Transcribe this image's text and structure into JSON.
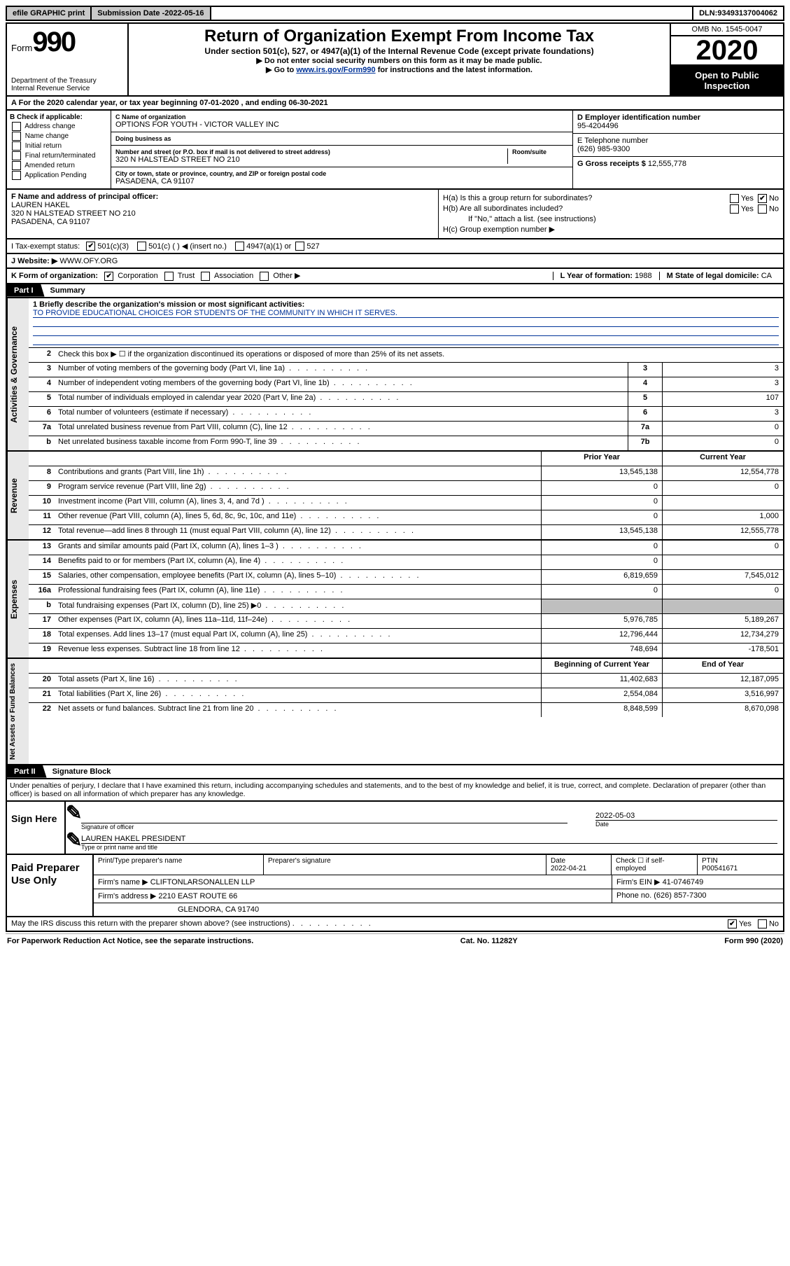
{
  "top": {
    "efile": "efile GRAPHIC print",
    "subdate_label": "Submission Date - ",
    "subdate": "2022-05-16",
    "dln_label": "DLN: ",
    "dln": "93493137004062"
  },
  "header": {
    "form_word": "Form",
    "form_num": "990",
    "dept": "Department of the Treasury\nInternal Revenue Service",
    "title": "Return of Organization Exempt From Income Tax",
    "subtitle": "Under section 501(c), 527, or 4947(a)(1) of the Internal Revenue Code (except private foundations)",
    "instr1": "▶ Do not enter social security numbers on this form as it may be made public.",
    "instr2a": "▶ Go to ",
    "instr2link": "www.irs.gov/Form990",
    "instr2b": " for instructions and the latest information.",
    "omb": "OMB No. 1545-0047",
    "year": "2020",
    "open": "Open to Public Inspection"
  },
  "period": {
    "line": "For the 2020 calendar year, or tax year beginning 07-01-2020   , and ending 06-30-2021"
  },
  "B": {
    "label": "B Check if applicable:",
    "opts": [
      "Address change",
      "Name change",
      "Initial return",
      "Final return/terminated",
      "Amended return",
      "Application Pending"
    ]
  },
  "C": {
    "name_label": "C Name of organization",
    "name": "OPTIONS FOR YOUTH - VICTOR VALLEY INC",
    "dba_label": "Doing business as",
    "dba": "",
    "street_label": "Number and street (or P.O. box if mail is not delivered to street address)",
    "room_label": "Room/suite",
    "street": "320 N HALSTEAD STREET NO 210",
    "city_label": "City or town, state or province, country, and ZIP or foreign postal code",
    "city": "PASADENA, CA  91107"
  },
  "D": {
    "label": "D Employer identification number",
    "val": "95-4204496"
  },
  "E": {
    "label": "E Telephone number",
    "val": "(626) 985-9300"
  },
  "G": {
    "label": "G Gross receipts $ ",
    "val": "12,555,778"
  },
  "F": {
    "label": "F  Name and address of principal officer:",
    "name": "LAUREN HAKEL",
    "addr1": "320 N HALSTEAD STREET NO 210",
    "addr2": "PASADENA, CA  91107"
  },
  "H": {
    "a": "H(a)  Is this a group return for subordinates?",
    "b": "H(b)  Are all subordinates included?",
    "b_note": "If \"No,\" attach a list. (see instructions)",
    "c": "H(c)  Group exemption number ▶"
  },
  "I": {
    "label": "I   Tax-exempt status:",
    "c1": "501(c)(3)",
    "c2": "501(c) (  ) ◀ (insert no.)",
    "c3": "4947(a)(1) or",
    "c4": "527"
  },
  "J": {
    "label": "J   Website: ▶ ",
    "val": "WWW.OFY.ORG"
  },
  "K": {
    "label": "K Form of organization:",
    "o1": "Corporation",
    "o2": "Trust",
    "o3": "Association",
    "o4": "Other ▶"
  },
  "L": {
    "label": "L Year of formation: ",
    "val": "1988"
  },
  "M": {
    "label": "M State of legal domicile: ",
    "val": "CA"
  },
  "part1": {
    "tab": "Part I",
    "title": "Summary"
  },
  "sum": {
    "l1_label": "1   Briefly describe the organization's mission or most significant activities:",
    "l1_val": "TO PROVIDE EDUCATIONAL CHOICES FOR STUDENTS OF THE COMMUNITY IN WHICH IT SERVES.",
    "l2": "Check this box ▶ ☐  if the organization discontinued its operations or disposed of more than 25% of its net assets.",
    "rows_gov": [
      {
        "n": "3",
        "d": "Number of voting members of the governing body (Part VI, line 1a)",
        "bn": "3",
        "v": "3"
      },
      {
        "n": "4",
        "d": "Number of independent voting members of the governing body (Part VI, line 1b)",
        "bn": "4",
        "v": "3"
      },
      {
        "n": "5",
        "d": "Total number of individuals employed in calendar year 2020 (Part V, line 2a)",
        "bn": "5",
        "v": "107"
      },
      {
        "n": "6",
        "d": "Total number of volunteers (estimate if necessary)",
        "bn": "6",
        "v": "3"
      },
      {
        "n": "7a",
        "d": "Total unrelated business revenue from Part VIII, column (C), line 12",
        "bn": "7a",
        "v": "0"
      },
      {
        "n": "b",
        "d": "Net unrelated business taxable income from Form 990-T, line 39",
        "bn": "7b",
        "v": "0"
      }
    ],
    "hdr_prior": "Prior Year",
    "hdr_curr": "Current Year",
    "rows_rev": [
      {
        "n": "8",
        "d": "Contributions and grants (Part VIII, line 1h)",
        "p": "13,545,138",
        "c": "12,554,778"
      },
      {
        "n": "9",
        "d": "Program service revenue (Part VIII, line 2g)",
        "p": "0",
        "c": "0"
      },
      {
        "n": "10",
        "d": "Investment income (Part VIII, column (A), lines 3, 4, and 7d )",
        "p": "0",
        "c": ""
      },
      {
        "n": "11",
        "d": "Other revenue (Part VIII, column (A), lines 5, 6d, 8c, 9c, 10c, and 11e)",
        "p": "0",
        "c": "1,000"
      },
      {
        "n": "12",
        "d": "Total revenue—add lines 8 through 11 (must equal Part VIII, column (A), line 12)",
        "p": "13,545,138",
        "c": "12,555,778"
      }
    ],
    "rows_exp": [
      {
        "n": "13",
        "d": "Grants and similar amounts paid (Part IX, column (A), lines 1–3 )",
        "p": "0",
        "c": "0"
      },
      {
        "n": "14",
        "d": "Benefits paid to or for members (Part IX, column (A), line 4)",
        "p": "0",
        "c": ""
      },
      {
        "n": "15",
        "d": "Salaries, other compensation, employee benefits (Part IX, column (A), lines 5–10)",
        "p": "6,819,659",
        "c": "7,545,012"
      },
      {
        "n": "16a",
        "d": "Professional fundraising fees (Part IX, column (A), line 11e)",
        "p": "0",
        "c": "0"
      },
      {
        "n": "b",
        "d": "Total fundraising expenses (Part IX, column (D), line 25) ▶0",
        "p": "GREY",
        "c": "GREY"
      },
      {
        "n": "17",
        "d": "Other expenses (Part IX, column (A), lines 11a–11d, 11f–24e)",
        "p": "5,976,785",
        "c": "5,189,267"
      },
      {
        "n": "18",
        "d": "Total expenses. Add lines 13–17 (must equal Part IX, column (A), line 25)",
        "p": "12,796,444",
        "c": "12,734,279"
      },
      {
        "n": "19",
        "d": "Revenue less expenses. Subtract line 18 from line 12",
        "p": "748,694",
        "c": "-178,501"
      }
    ],
    "hdr_begin": "Beginning of Current Year",
    "hdr_end": "End of Year",
    "rows_na": [
      {
        "n": "20",
        "d": "Total assets (Part X, line 16)",
        "p": "11,402,683",
        "c": "12,187,095"
      },
      {
        "n": "21",
        "d": "Total liabilities (Part X, line 26)",
        "p": "2,554,084",
        "c": "3,516,997"
      },
      {
        "n": "22",
        "d": "Net assets or fund balances. Subtract line 21 from line 20",
        "p": "8,848,599",
        "c": "8,670,098"
      }
    ],
    "vtabs": [
      "Activities & Governance",
      "Revenue",
      "Expenses",
      "Net Assets or Fund Balances"
    ]
  },
  "part2": {
    "tab": "Part II",
    "title": "Signature Block"
  },
  "penalty": "Under penalties of perjury, I declare that I have examined this return, including accompanying schedules and statements, and to the best of my knowledge and belief, it is true, correct, and complete. Declaration of preparer (other than officer) is based on all information of which preparer has any knowledge.",
  "sign": {
    "left": "Sign Here",
    "sig_label": "Signature of officer",
    "date_label": "Date",
    "date": "2022-05-03",
    "name": "LAUREN HAKEL PRESIDENT",
    "name_label": "Type or print name and title"
  },
  "prep": {
    "left": "Paid Preparer Use Only",
    "h_name": "Print/Type preparer's name",
    "h_sig": "Preparer's signature",
    "h_date": "Date",
    "date": "2022-04-21",
    "check_label": "Check ☐ if self-employed",
    "ptin_label": "PTIN",
    "ptin": "P00541671",
    "firm_label": "Firm's name    ▶ ",
    "firm": "CLIFTONLARSONALLEN LLP",
    "ein_label": "Firm's EIN ▶ ",
    "ein": "41-0746749",
    "addr_label": "Firm's address ▶ ",
    "addr1": "2210 EAST ROUTE 66",
    "addr2": "GLENDORA, CA  91740",
    "phone_label": "Phone no. ",
    "phone": "(626) 857-7300",
    "discuss": "May the IRS discuss this return with the preparer shown above? (see instructions)"
  },
  "footer": {
    "left": "For Paperwork Reduction Act Notice, see the separate instructions.",
    "mid": "Cat. No. 11282Y",
    "right": "Form 990 (2020)"
  }
}
